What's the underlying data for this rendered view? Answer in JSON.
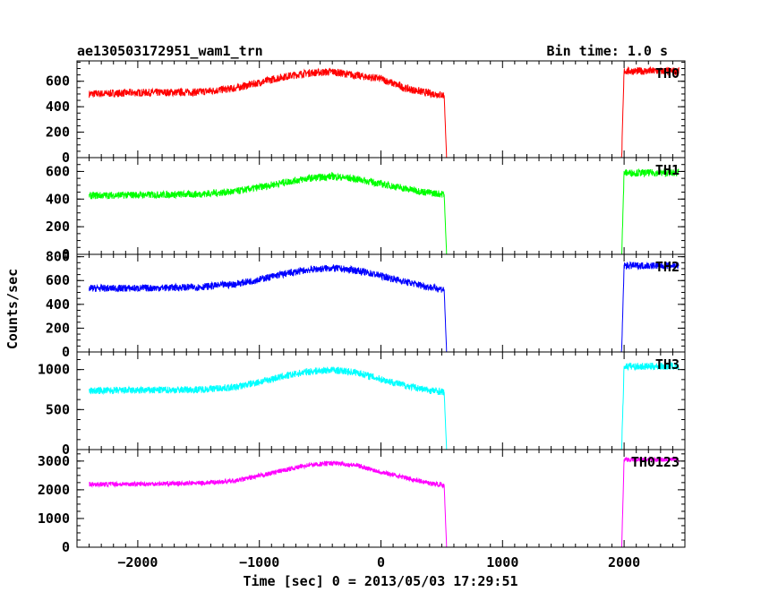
{
  "header": {
    "title": "ae130503172951_wam1_trn",
    "bin_time": "Bin time: 1.0 s"
  },
  "axes": {
    "xlabel": "Time [sec] 0 = 2013/05/03 17:29:51",
    "ylabel": "Counts/sec"
  },
  "chart_data": {
    "type": "line",
    "title": "ae130503172951_wam1_trn",
    "subtitle": "Bin time: 1.0 s",
    "xlabel": "Time [sec] 0 = 2013/05/03 17:29:51",
    "ylabel": "Counts/sec",
    "xlim": [
      -2500,
      2500
    ],
    "x_ticks": [
      -2000,
      -1000,
      0,
      1000,
      2000
    ],
    "x_tick_labels": [
      "−2000",
      "−1000",
      "0",
      "1000",
      "2000"
    ],
    "grid": false,
    "panels": [
      {
        "name": "TH0",
        "color": "#ff0000",
        "ylim": [
          0,
          760
        ],
        "y_ticks": [
          0,
          200,
          400,
          600
        ],
        "y_tick_labels": [
          "0",
          "200",
          "400",
          "600"
        ],
        "x": [
          -2400,
          -2000,
          -1500,
          -1200,
          -1000,
          -800,
          -600,
          -400,
          -200,
          0,
          200,
          400,
          520,
          540,
          1980,
          2000,
          2450
        ],
        "y": [
          500,
          510,
          515,
          545,
          590,
          635,
          665,
          675,
          645,
          620,
          545,
          505,
          490,
          0,
          0,
          680,
          680
        ],
        "noise": 30
      },
      {
        "name": "TH1",
        "color": "#00ff00",
        "ylim": [
          0,
          700
        ],
        "y_ticks": [
          0,
          200,
          400,
          600
        ],
        "y_tick_labels": [
          "0",
          "200",
          "400",
          "600"
        ],
        "x": [
          -2400,
          -2000,
          -1500,
          -1200,
          -1000,
          -800,
          -600,
          -400,
          -200,
          0,
          200,
          400,
          520,
          540,
          1980,
          2000,
          2450
        ],
        "y": [
          425,
          430,
          435,
          455,
          485,
          520,
          550,
          565,
          545,
          510,
          475,
          445,
          435,
          0,
          0,
          590,
          590
        ],
        "noise": 26
      },
      {
        "name": "TH2",
        "color": "#0000ff",
        "ylim": [
          0,
          820
        ],
        "y_ticks": [
          0,
          200,
          400,
          600,
          800
        ],
        "y_tick_labels": [
          "0",
          "200",
          "400",
          "600",
          "800"
        ],
        "x": [
          -2400,
          -2000,
          -1500,
          -1200,
          -1000,
          -800,
          -600,
          -400,
          -200,
          0,
          200,
          400,
          520,
          540,
          1980,
          2000,
          2450
        ],
        "y": [
          535,
          535,
          545,
          570,
          610,
          655,
          690,
          705,
          685,
          640,
          590,
          545,
          525,
          0,
          0,
          725,
          725
        ],
        "noise": 30
      },
      {
        "name": "TH3",
        "color": "#00ffff",
        "ylim": [
          0,
          1220
        ],
        "y_ticks": [
          0,
          500,
          1000
        ],
        "y_tick_labels": [
          "0",
          "500",
          "1000"
        ],
        "x": [
          -2400,
          -2000,
          -1500,
          -1200,
          -1000,
          -800,
          -600,
          -400,
          -200,
          0,
          200,
          400,
          520,
          540,
          1980,
          2000,
          2450
        ],
        "y": [
          735,
          740,
          750,
          780,
          845,
          915,
          975,
          995,
          965,
          880,
          800,
          740,
          720,
          0,
          0,
          1040,
          1040
        ],
        "noise": 45
      },
      {
        "name": "TH0123",
        "color": "#ff00ff",
        "ylim": [
          0,
          3400
        ],
        "y_ticks": [
          0,
          1000,
          2000,
          3000
        ],
        "y_tick_labels": [
          "0",
          "1000",
          "2000",
          "3000"
        ],
        "x": [
          -2400,
          -2000,
          -1500,
          -1200,
          -1000,
          -800,
          -600,
          -400,
          -200,
          0,
          200,
          400,
          520,
          540,
          1980,
          2000,
          2450
        ],
        "y": [
          2190,
          2200,
          2230,
          2310,
          2480,
          2680,
          2860,
          2930,
          2850,
          2620,
          2420,
          2230,
          2160,
          0,
          0,
          3050,
          3050
        ],
        "noise": 80
      }
    ]
  }
}
